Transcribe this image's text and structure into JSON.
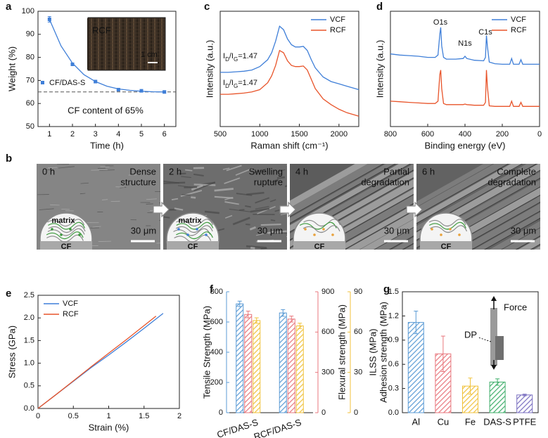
{
  "chart_data": [
    {
      "type": "scatter",
      "panel": "a",
      "xlabel": "Time (h)",
      "ylabel": "Weight (%)",
      "x": [
        1,
        2,
        3,
        4,
        5,
        6
      ],
      "series": [
        {
          "name": "CF/DAS-S",
          "color": "#3f7fd8",
          "values": [
            96.5,
            77,
            69.5,
            66,
            65.5,
            65
          ],
          "errors": [
            1.2,
            0.6,
            0.5,
            0.4,
            0.4,
            0.4
          ]
        }
      ],
      "fit": {
        "color": "#3f7fd8",
        "x": [
          1,
          1.5,
          2,
          2.5,
          3,
          3.5,
          4,
          4.5,
          5,
          5.5,
          6
        ],
        "values": [
          96.5,
          85,
          77.5,
          72.5,
          69.5,
          67.5,
          66.3,
          65.7,
          65.3,
          65.1,
          65
        ]
      },
      "reference_line": {
        "value": 65,
        "color": "#555555"
      },
      "annotation": "CF content of 65%",
      "inset": {
        "label": "RCF",
        "scale_bar": "1 cm"
      },
      "xlim": [
        0.5,
        6.5
      ],
      "ylim": [
        50,
        100
      ],
      "xticks": [
        1,
        2,
        3,
        4,
        5,
        6
      ],
      "yticks": [
        50,
        60,
        70,
        80,
        90,
        100
      ]
    },
    {
      "type": "line",
      "panel": "c",
      "xlabel": "Raman shift (cm⁻¹)",
      "ylabel": "Intensity (a.u.)",
      "legend": "upper right",
      "x": [
        500,
        600,
        700,
        800,
        900,
        1000,
        1100,
        1150,
        1200,
        1250,
        1300,
        1350,
        1400,
        1450,
        1500,
        1550,
        1600,
        1650,
        1700,
        1800,
        1900,
        2000,
        2100,
        2250
      ],
      "series": [
        {
          "name": "VCF",
          "color": "#3f7fd8",
          "values": [
            0.47,
            0.47,
            0.475,
            0.48,
            0.49,
            0.52,
            0.58,
            0.64,
            0.74,
            0.87,
            0.84,
            0.76,
            0.71,
            0.69,
            0.69,
            0.695,
            0.66,
            0.58,
            0.51,
            0.43,
            0.39,
            0.37,
            0.35,
            0.32
          ]
        },
        {
          "name": "RCF",
          "color": "#e8542a",
          "values": [
            0.28,
            0.28,
            0.285,
            0.29,
            0.3,
            0.32,
            0.38,
            0.44,
            0.53,
            0.66,
            0.64,
            0.57,
            0.53,
            0.52,
            0.52,
            0.525,
            0.49,
            0.41,
            0.33,
            0.24,
            0.19,
            0.15,
            0.12,
            0.09
          ]
        }
      ],
      "annotations": [
        {
          "parts": [
            "I",
            "D",
            "/I",
            "G",
            "=1.47"
          ]
        },
        {
          "parts": [
            "I",
            "D",
            "/I",
            "G",
            "=1.47"
          ]
        }
      ],
      "xlim": [
        500,
        2250
      ],
      "ylim": [
        0,
        1
      ],
      "xticks": [
        500,
        1000,
        1500,
        2000
      ]
    },
    {
      "type": "line",
      "panel": "d",
      "xlabel": "Binding energy (eV)",
      "ylabel": "Intensity (a.u.)",
      "legend": "upper right",
      "x": [
        800,
        750,
        700,
        650,
        600,
        560,
        545,
        535,
        530,
        525,
        515,
        500,
        450,
        410,
        400,
        390,
        350,
        300,
        290,
        285,
        280,
        270,
        240,
        200,
        160,
        150,
        140,
        110,
        100,
        90,
        50,
        0
      ],
      "series": [
        {
          "name": "VCF",
          "color": "#3f7fd8",
          "values": [
            0.63,
            0.62,
            0.615,
            0.61,
            0.6,
            0.6,
            0.62,
            0.8,
            0.86,
            0.7,
            0.6,
            0.585,
            0.585,
            0.59,
            0.61,
            0.59,
            0.575,
            0.57,
            0.6,
            0.79,
            0.7,
            0.56,
            0.545,
            0.54,
            0.54,
            0.59,
            0.54,
            0.54,
            0.58,
            0.54,
            0.54,
            0.54
          ]
        },
        {
          "name": "RCF",
          "color": "#e8542a",
          "values": [
            0.22,
            0.215,
            0.21,
            0.205,
            0.2,
            0.2,
            0.22,
            0.45,
            0.49,
            0.33,
            0.2,
            0.19,
            0.19,
            0.19,
            0.195,
            0.19,
            0.185,
            0.185,
            0.21,
            0.49,
            0.35,
            0.18,
            0.175,
            0.175,
            0.175,
            0.22,
            0.175,
            0.175,
            0.21,
            0.175,
            0.175,
            0.175
          ]
        }
      ],
      "peak_labels": [
        "O1s",
        "N1s",
        "C1s"
      ],
      "xlim": [
        800,
        0
      ],
      "ylim": [
        0,
        1
      ],
      "xticks": [
        800,
        600,
        400,
        200,
        0
      ]
    },
    {
      "type": "line",
      "panel": "e",
      "xlabel": "Strain (%)",
      "ylabel": "Stress (GPa)",
      "legend": "upper left",
      "series": [
        {
          "name": "VCF",
          "color": "#3f7fd8",
          "x": [
            0,
            0.25,
            0.5,
            0.75,
            1,
            1.25,
            1.5,
            1.77
          ],
          "values": [
            0,
            0.3,
            0.6,
            0.9,
            1.18,
            1.47,
            1.77,
            2.1
          ]
        },
        {
          "name": "RCF",
          "color": "#e8542a",
          "x": [
            0,
            0.25,
            0.5,
            0.75,
            1,
            1.25,
            1.5,
            1.67
          ],
          "values": [
            0,
            0.3,
            0.61,
            0.92,
            1.22,
            1.52,
            1.83,
            2.04
          ]
        }
      ],
      "xlim": [
        0,
        2
      ],
      "ylim": [
        0,
        2.5
      ],
      "xticks": [
        0,
        0.5,
        1,
        1.5,
        2
      ],
      "yticks": [
        {
          "value": 0,
          "label": "0.0"
        },
        {
          "value": 0.5,
          "label": "0.5"
        },
        {
          "value": 1,
          "label": "1.0"
        },
        {
          "value": 1.5,
          "label": "1.5"
        },
        {
          "value": 2,
          "label": "2.0"
        },
        {
          "value": 2.5,
          "label": "2.5"
        }
      ]
    },
    {
      "type": "bar",
      "panel": "f",
      "categories": [
        "CF/DAS-S",
        "RCF/DAS-S"
      ],
      "series": [
        {
          "name": "Tensile Strength (MPa)",
          "color": "#5b9bd5",
          "axis": "y",
          "values": [
            720,
            660
          ],
          "errors": [
            18,
            22
          ]
        },
        {
          "name": "Flexural strength (MPa)",
          "color": "#e8777d",
          "axis": "y2",
          "values": [
            731,
            697
          ],
          "errors": [
            25,
            22
          ]
        },
        {
          "name": "ILSS (MPa)",
          "color": "#f0c23c",
          "axis": "y3",
          "values": [
            68.6,
            64.6
          ],
          "errors": [
            2,
            2
          ]
        }
      ],
      "ylim": [
        0,
        800
      ],
      "yticks": [
        0,
        200,
        400,
        600,
        800
      ],
      "y2lim": [
        0,
        900
      ],
      "y2ticks": [
        0,
        300,
        600,
        900
      ],
      "y3lim": [
        0,
        90
      ],
      "y3ticks": [
        0,
        30,
        60,
        90
      ]
    },
    {
      "type": "bar",
      "panel": "g",
      "ylabel": "Adhesion strength (MPa)",
      "categories": [
        "Al",
        "Cu",
        "Fe",
        "DAS-S",
        "PTFE"
      ],
      "values": [
        1.12,
        0.73,
        0.33,
        0.38,
        0.22
      ],
      "errors": [
        0.14,
        0.22,
        0.1,
        0.04,
        0.01
      ],
      "colors": [
        "#5b9bd5",
        "#e8777d",
        "#f0c23c",
        "#3fae6a",
        "#7a6fc0"
      ],
      "annotations": [
        "Force",
        "DP"
      ],
      "ylim": [
        0,
        1.5
      ],
      "yticks": [
        {
          "value": 0,
          "label": "0.0"
        },
        {
          "value": 0.3,
          "label": "0.3"
        },
        {
          "value": 0.6,
          "label": "0.6"
        },
        {
          "value": 0.9,
          "label": "0.9"
        },
        {
          "value": 1.2,
          "label": "1.2"
        },
        {
          "value": 1.5,
          "label": "1.5"
        }
      ]
    }
  ],
  "sem_figure": {
    "panel": "b",
    "frames": [
      {
        "time": "0 h",
        "caption": [
          "Dense",
          "structure"
        ],
        "schematic": {
          "matrix": "matrix",
          "fiber": "CF"
        },
        "scale_bar": "30 μm"
      },
      {
        "time": "2 h",
        "caption": [
          "Swelling",
          "rupture"
        ],
        "schematic": {
          "matrix": "matrix",
          "fiber": "CF"
        },
        "scale_bar": "30 μm"
      },
      {
        "time": "4 h",
        "caption": [
          "Partial",
          "degradation"
        ],
        "schematic": {
          "fiber": "CF"
        },
        "scale_bar": "30 μm"
      },
      {
        "time": "6 h",
        "caption": [
          "Complete",
          "degradation"
        ],
        "schematic": {
          "fiber": "CF"
        },
        "scale_bar": "30 μm"
      }
    ]
  }
}
